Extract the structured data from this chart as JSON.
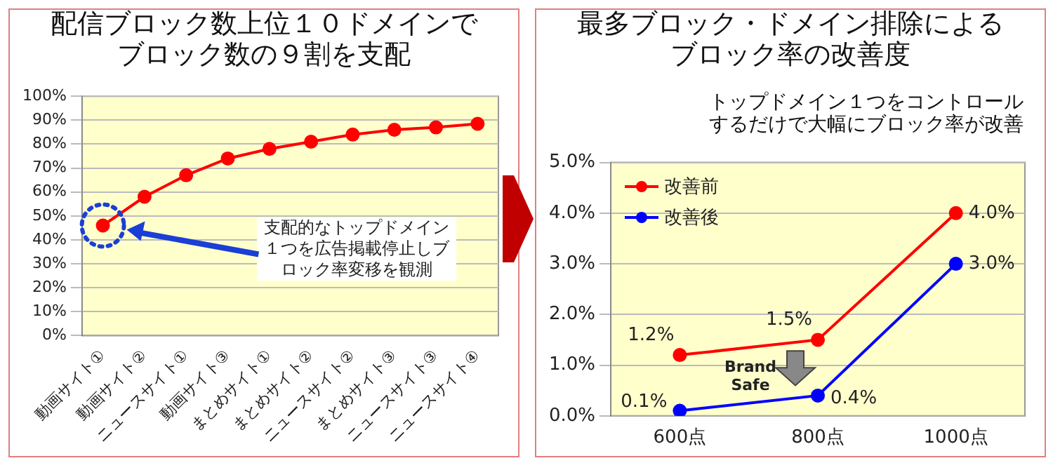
{
  "chart_data": [
    {
      "type": "line",
      "title": "配信ブロック数上位１０ドメインでブロック数の９割を支配",
      "categories": [
        "動画サイト①",
        "動画サイト②",
        "ニュースサイト①",
        "動画サイト③",
        "まとめサイト①",
        "まとめサイト②",
        "ニュースサイト②",
        "まとめサイト③",
        "ニュースサイト③",
        "ニュースサイト④"
      ],
      "series": [
        {
          "color": "#ff0000",
          "values": [
            46,
            58,
            67,
            74,
            78,
            81,
            84,
            86,
            87,
            88.5
          ]
        }
      ],
      "ylim": [
        0,
        100
      ],
      "yticks": [
        {
          "value": 0,
          "label": "0%"
        },
        {
          "value": 10,
          "label": "10%"
        },
        {
          "value": 20,
          "label": "20%"
        },
        {
          "value": 30,
          "label": "30%"
        },
        {
          "value": 40,
          "label": "40%"
        },
        {
          "value": 50,
          "label": "50%"
        },
        {
          "value": 60,
          "label": "60%"
        },
        {
          "value": 70,
          "label": "70%"
        },
        {
          "value": 80,
          "label": "80%"
        },
        {
          "value": 90,
          "label": "90%"
        },
        {
          "value": 100,
          "label": "100%"
        }
      ],
      "grid": "y",
      "marker": "circle",
      "annotations": [
        "支配的なトップドメイン１つを広告掲載停止しブロック率変移を観測"
      ]
    },
    {
      "type": "line",
      "title": "最多ブロック・ドメイン排除によるブロック率の改善度",
      "subtitle": "トップドメイン１つをコントロールするだけで大幅にブロック率が改善",
      "categories": [
        "600点",
        "800点",
        "1000点"
      ],
      "series": [
        {
          "name": "改善前",
          "color": "#ff0000",
          "values": [
            1.2,
            1.5,
            4.0
          ],
          "value_labels": [
            "1.2%",
            "1.5%",
            "4.0%"
          ]
        },
        {
          "name": "改善後",
          "color": "#0000ff",
          "values": [
            0.1,
            0.4,
            3.0
          ],
          "value_labels": [
            "0.1%",
            "0.4%",
            "3.0%"
          ]
        }
      ],
      "ylim": [
        0,
        5
      ],
      "yticks": [
        {
          "value": 0,
          "label": "0.0%"
        },
        {
          "value": 1,
          "label": "1.0%"
        },
        {
          "value": 2,
          "label": "2.0%"
        },
        {
          "value": 3,
          "label": "3.0%"
        },
        {
          "value": 4,
          "label": "4.0%"
        },
        {
          "value": 5,
          "label": "5.0%"
        }
      ],
      "grid": "y",
      "marker": "circle",
      "legend": "top left",
      "annotations": [
        "Brand\nSafe"
      ]
    }
  ]
}
